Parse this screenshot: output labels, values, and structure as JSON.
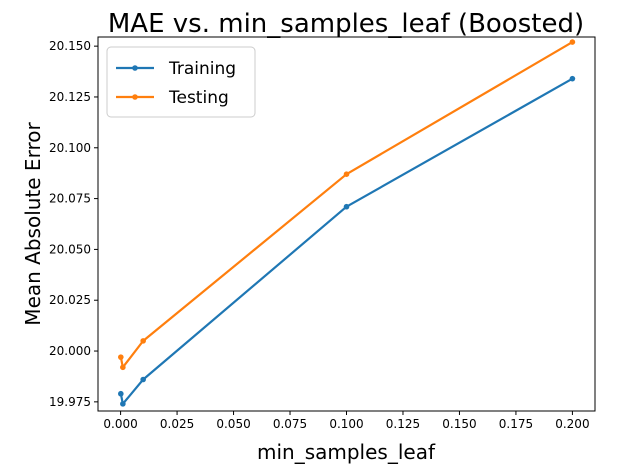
{
  "chart_data": {
    "type": "line",
    "title": "MAE vs. min_samples_leaf (Boosted)",
    "xlabel": "min_samples_leaf",
    "ylabel": "Mean Absolute Error",
    "xlim": [
      -0.01,
      0.21
    ],
    "ylim": [
      19.9705,
      20.1545
    ],
    "xticks": [
      0.0,
      0.025,
      0.05,
      0.075,
      0.1,
      0.125,
      0.15,
      0.175,
      0.2
    ],
    "xtick_labels": [
      "0.000",
      "0.025",
      "0.050",
      "0.075",
      "0.100",
      "0.125",
      "0.150",
      "0.175",
      "0.200"
    ],
    "yticks": [
      19.975,
      20.0,
      20.025,
      20.05,
      20.075,
      20.1,
      20.125,
      20.15
    ],
    "ytick_labels": [
      "19.975",
      "20.000",
      "20.025",
      "20.050",
      "20.075",
      "20.100",
      "20.125",
      "20.150"
    ],
    "grid": false,
    "legend_position": "upper-left",
    "x": [
      0.0001,
      0.001,
      0.01,
      0.1,
      0.2
    ],
    "series": [
      {
        "name": "Training",
        "color": "#1f77b4",
        "values": [
          19.979,
          19.974,
          19.986,
          20.071,
          20.134
        ]
      },
      {
        "name": "Testing",
        "color": "#ff7f0e",
        "values": [
          19.997,
          19.992,
          20.005,
          20.087,
          20.152
        ]
      }
    ]
  }
}
